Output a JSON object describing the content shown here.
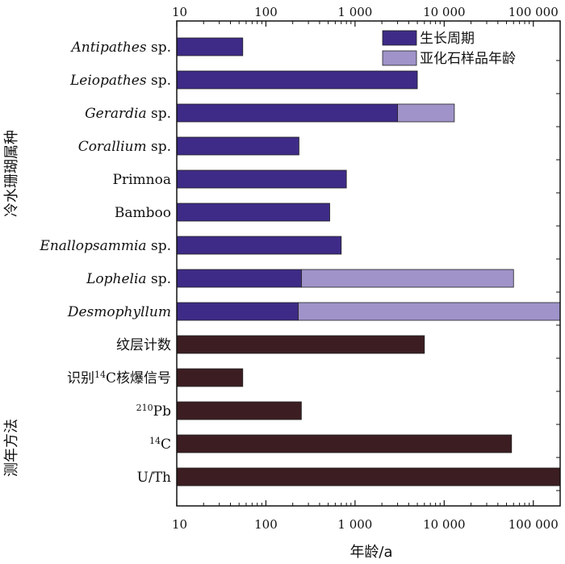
{
  "chart_data": {
    "type": "bar",
    "orientation": "horizontal",
    "x_scale": "log",
    "xlim": [
      10,
      200000
    ],
    "x_ticks": [
      10,
      100,
      1000,
      10000,
      100000
    ],
    "x_tick_labels": [
      "10",
      "100",
      "1 000",
      "10 000",
      "100 000"
    ],
    "xlabel": "年龄/a",
    "group_labels": {
      "corals": "冷水珊瑚属种",
      "methods": "测年方法"
    },
    "legend": {
      "position": "top-right",
      "entries": [
        {
          "key": "growth",
          "label": "生长周期"
        },
        {
          "key": "subfossil",
          "label": "亚化石样品年龄"
        }
      ]
    },
    "colors": {
      "growth": "#3e2b87",
      "subfossil": "#9f93c9",
      "method": "#3c1e22"
    },
    "categories": [
      {
        "parts": [
          {
            "text": "Antipathes",
            "italic": true
          },
          {
            "text": " sp."
          }
        ],
        "group": "corals",
        "growth": 55
      },
      {
        "parts": [
          {
            "text": "Leiopathes",
            "italic": true
          },
          {
            "text": " sp."
          }
        ],
        "group": "corals",
        "growth": 5000
      },
      {
        "parts": [
          {
            "text": "Gerardia",
            "italic": true
          },
          {
            "text": " sp."
          }
        ],
        "group": "corals",
        "growth": 3000,
        "subfossil": 13000
      },
      {
        "parts": [
          {
            "text": "Corallium",
            "italic": true
          },
          {
            "text": " sp."
          }
        ],
        "group": "corals",
        "growth": 235
      },
      {
        "parts": [
          {
            "text": "Primnoa"
          }
        ],
        "group": "corals",
        "growth": 800
      },
      {
        "parts": [
          {
            "text": "Bamboo"
          }
        ],
        "group": "corals",
        "growth": 520
      },
      {
        "parts": [
          {
            "text": "Enallopsammia",
            "italic": true
          },
          {
            "text": " sp."
          }
        ],
        "group": "corals",
        "growth": 700
      },
      {
        "parts": [
          {
            "text": "Lophelia",
            "italic": true
          },
          {
            "text": " sp."
          }
        ],
        "group": "corals",
        "growth": 250,
        "subfossil": 60000
      },
      {
        "parts": [
          {
            "text": "Desmophyllum",
            "italic": true
          }
        ],
        "group": "corals",
        "growth": 230,
        "subfossil": 200000
      },
      {
        "parts": [
          {
            "text": "纹层计数"
          }
        ],
        "group": "methods",
        "value": 6000
      },
      {
        "parts": [
          {
            "text": "识别"
          },
          {
            "text": "14",
            "sup": true
          },
          {
            "text": "C核爆信号"
          }
        ],
        "group": "methods",
        "value": 55
      },
      {
        "parts": [
          {
            "text": "210",
            "sup": true
          },
          {
            "text": "Pb"
          }
        ],
        "group": "methods",
        "value": 250
      },
      {
        "parts": [
          {
            "text": "14",
            "sup": true
          },
          {
            "text": "C"
          }
        ],
        "group": "methods",
        "value": 57000
      },
      {
        "parts": [
          {
            "text": "U/Th"
          }
        ],
        "group": "methods",
        "value": 200000
      }
    ]
  }
}
